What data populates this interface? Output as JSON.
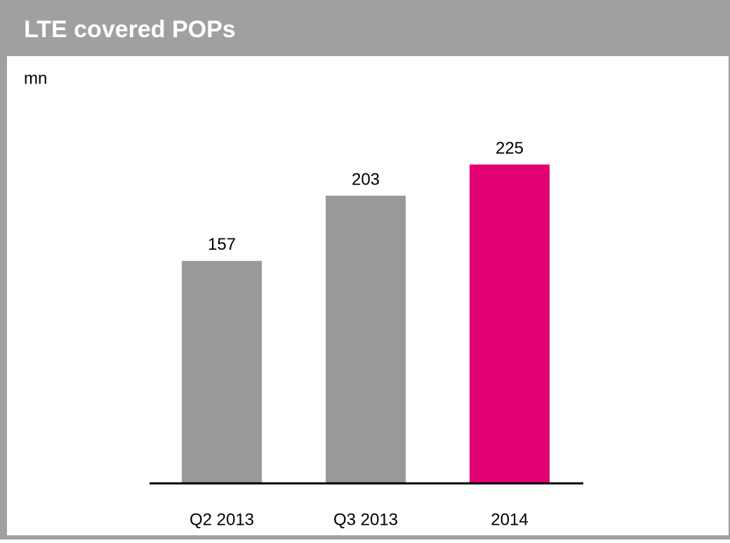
{
  "chart_data": {
    "type": "bar",
    "title": "LTE covered POPs",
    "subtitle": "mn",
    "categories": [
      "Q2 2013",
      "Q3 2013",
      "2014"
    ],
    "values": [
      157,
      203,
      225
    ],
    "colors": [
      "#999999",
      "#999999",
      "#e20074"
    ]
  }
}
